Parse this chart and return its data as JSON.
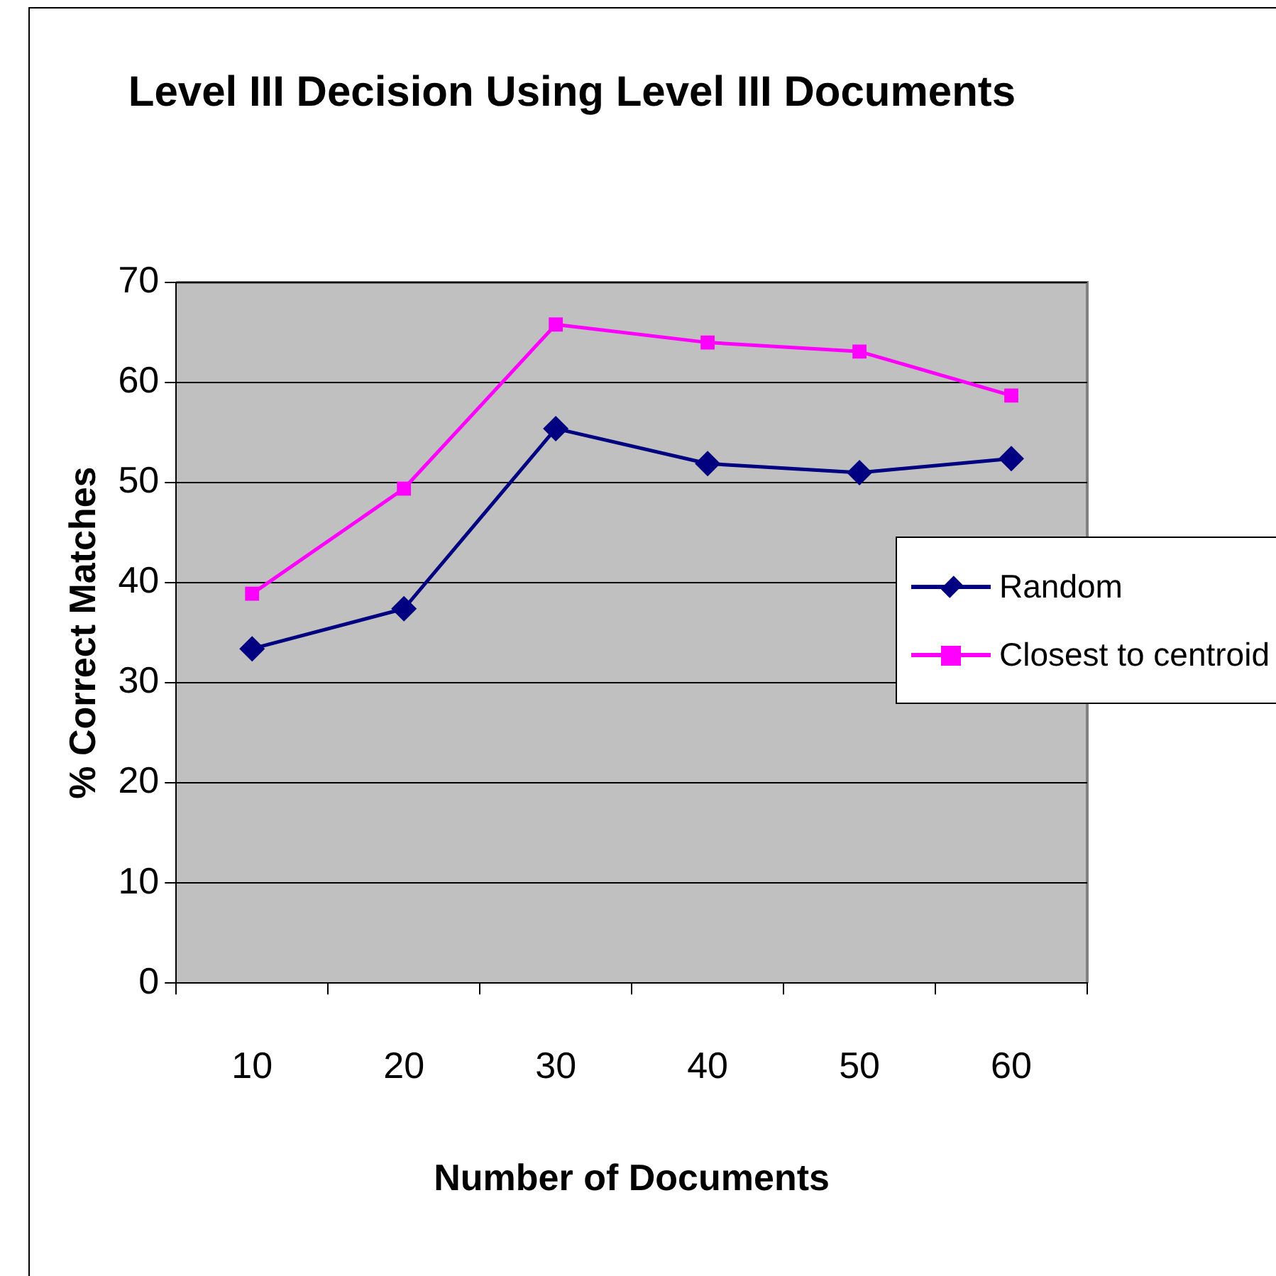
{
  "chart_data": {
    "type": "line",
    "title": "Level III Decision Using Level III Documents",
    "xlabel": "Number of Documents",
    "ylabel": "% Correct Matches",
    "categories": [
      "10",
      "20",
      "30",
      "40",
      "50",
      "60"
    ],
    "series": [
      {
        "name": "Random",
        "color": "#000080",
        "marker": "diamond",
        "values": [
          33.4,
          37.4,
          55.4,
          51.9,
          51.0,
          52.4
        ]
      },
      {
        "name": "Closest to centroid",
        "color": "#ff00ff",
        "marker": "square",
        "values": [
          38.9,
          49.4,
          65.8,
          64.0,
          63.1,
          58.7
        ]
      }
    ],
    "ylim": [
      0,
      70
    ],
    "yticks": [
      0,
      10,
      20,
      30,
      40,
      50,
      60,
      70
    ],
    "grid": "y",
    "legend": "right",
    "line_style": "solid"
  }
}
